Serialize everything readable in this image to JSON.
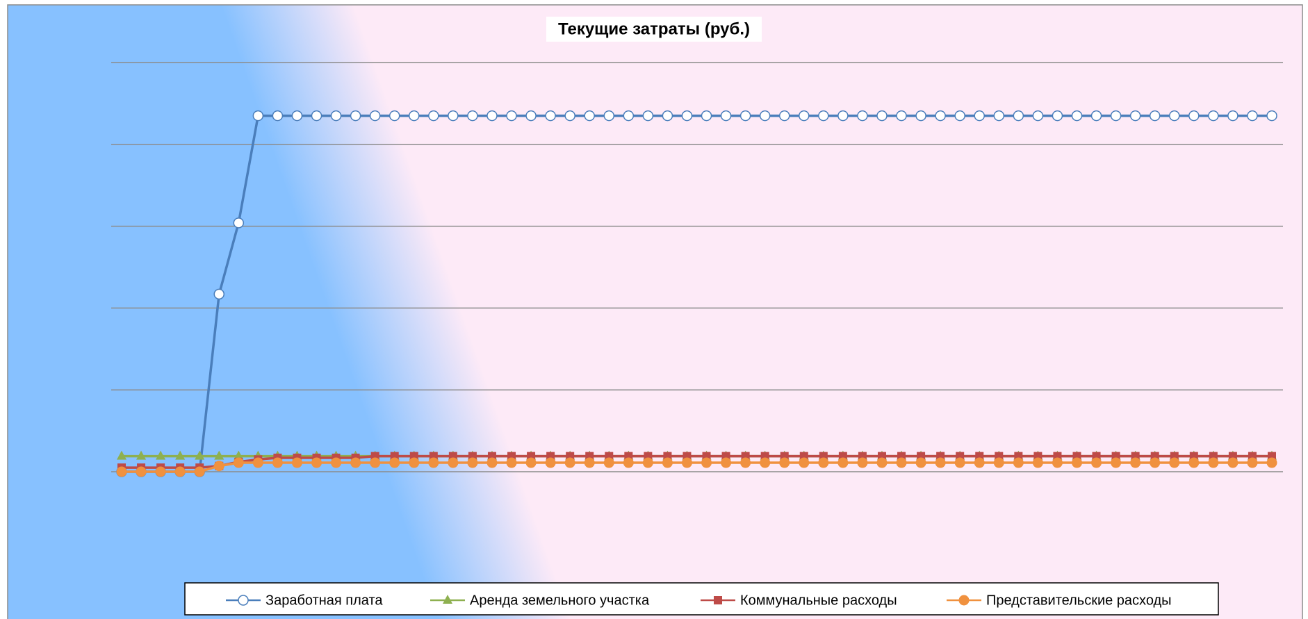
{
  "chart_data": {
    "type": "line",
    "title": "Текущие затраты (руб.)",
    "ylim": [
      0,
      5
    ],
    "yticks": [
      0,
      1,
      2,
      3,
      4,
      5
    ],
    "grid": true,
    "legend": "bottom",
    "series": [
      {
        "name": "Заработная плата",
        "color": "#4a7ebb",
        "marker": "circle-open",
        "values": [
          0,
          0,
          0,
          0,
          0,
          2.17,
          3.04,
          4.35,
          4.35,
          4.35,
          4.35,
          4.35,
          4.35,
          4.35,
          4.35,
          4.35,
          4.35,
          4.35,
          4.35,
          4.35,
          4.35,
          4.35,
          4.35,
          4.35,
          4.35,
          4.35,
          4.35,
          4.35,
          4.35,
          4.35,
          4.35,
          4.35,
          4.35,
          4.35,
          4.35,
          4.35,
          4.35,
          4.35,
          4.35,
          4.35,
          4.35,
          4.35,
          4.35,
          4.35,
          4.35,
          4.35,
          4.35,
          4.35,
          4.35,
          4.35,
          4.35,
          4.35,
          4.35,
          4.35,
          4.35,
          4.35,
          4.35,
          4.35,
          4.35,
          4.35
        ]
      },
      {
        "name": "Аренда земельного участка",
        "color": "#8eb050",
        "marker": "triangle",
        "values": [
          0.19,
          0.19,
          0.19,
          0.19,
          0.19,
          0.19,
          0.19,
          0.19,
          0.19,
          0.19,
          0.19,
          0.19,
          0.19,
          0.19,
          0.19,
          0.19,
          0.19,
          0.19,
          0.19,
          0.19,
          0.19,
          0.19,
          0.19,
          0.19,
          0.19,
          0.19,
          0.19,
          0.19,
          0.19,
          0.19,
          0.19,
          0.19,
          0.19,
          0.19,
          0.19,
          0.19,
          0.19,
          0.19,
          0.19,
          0.19,
          0.19,
          0.19,
          0.19,
          0.19,
          0.19,
          0.19,
          0.19,
          0.19,
          0.19,
          0.19,
          0.19,
          0.19,
          0.19,
          0.19,
          0.19,
          0.19,
          0.19,
          0.19,
          0.19,
          0.19
        ]
      },
      {
        "name": "Коммунальные расходы",
        "color": "#be4b48",
        "marker": "square",
        "values": [
          0.05,
          0.05,
          0.05,
          0.05,
          0.05,
          0.07,
          0.12,
          0.15,
          0.17,
          0.17,
          0.17,
          0.17,
          0.17,
          0.19,
          0.19,
          0.19,
          0.19,
          0.19,
          0.19,
          0.19,
          0.19,
          0.19,
          0.19,
          0.19,
          0.19,
          0.19,
          0.19,
          0.19,
          0.19,
          0.19,
          0.19,
          0.19,
          0.19,
          0.19,
          0.19,
          0.19,
          0.19,
          0.19,
          0.19,
          0.19,
          0.19,
          0.19,
          0.19,
          0.19,
          0.19,
          0.19,
          0.19,
          0.19,
          0.19,
          0.19,
          0.19,
          0.19,
          0.19,
          0.19,
          0.19,
          0.19,
          0.19,
          0.19,
          0.19,
          0.19
        ]
      },
      {
        "name": "Представительские расходы",
        "color": "#f0913f",
        "marker": "circle",
        "values": [
          0,
          0,
          0,
          0,
          0,
          0.07,
          0.11,
          0.11,
          0.11,
          0.11,
          0.11,
          0.11,
          0.11,
          0.11,
          0.11,
          0.11,
          0.11,
          0.11,
          0.11,
          0.11,
          0.11,
          0.11,
          0.11,
          0.11,
          0.11,
          0.11,
          0.11,
          0.11,
          0.11,
          0.11,
          0.11,
          0.11,
          0.11,
          0.11,
          0.11,
          0.11,
          0.11,
          0.11,
          0.11,
          0.11,
          0.11,
          0.11,
          0.11,
          0.11,
          0.11,
          0.11,
          0.11,
          0.11,
          0.11,
          0.11,
          0.11,
          0.11,
          0.11,
          0.11,
          0.11,
          0.11,
          0.11,
          0.11,
          0.11,
          0.11
        ]
      }
    ]
  }
}
